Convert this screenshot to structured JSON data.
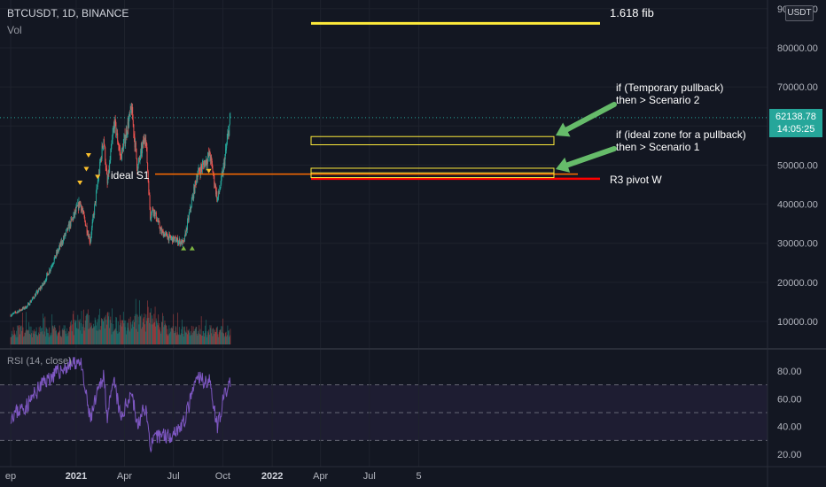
{
  "header": {
    "symbol_line": "BTCUSDT, 1D, BINANCE",
    "volume_label": "Vol",
    "rsi_label": "RSI (14, close)",
    "currency": "USDT"
  },
  "price_tag": {
    "price": "62138.78",
    "countdown": "14:05:25"
  },
  "annotations": {
    "fib": "1.618 fib",
    "scenario2_l1": "if (Temporary pullback)",
    "scenario2_l2": "then > Scenario 2",
    "scenario1_l1": "if (ideal zone for a pullback)",
    "scenario1_l2": "then > Scenario 1",
    "ideal_s1": "ideal S1",
    "r3": "R3 pivot W"
  },
  "colors": {
    "bg": "#131722",
    "up": "#26a69a",
    "down": "#ef5350",
    "rsi": "#7e57c2",
    "fib": "#ffeb3b",
    "s1": "#ff6d00",
    "r3": "#ff0000",
    "arrow": "#66bb6a"
  },
  "chart_data": [
    {
      "type": "candlestick",
      "x_ticks": [
        "ep",
        "2021",
        "Apr",
        "Jul",
        "Oct",
        "2022",
        "Apr",
        "Jul",
        "5"
      ],
      "y_ticks": [
        "90000.00",
        "80000.00",
        "70000.00",
        "60000.00",
        "50000.00",
        "40000.00",
        "30000.00",
        "20000.00",
        "10000.00"
      ],
      "ylim": [
        0,
        90000
      ],
      "close_path": [
        [
          "2020-09-01",
          11600
        ],
        [
          "2020-10-01",
          13800
        ],
        [
          "2020-11-01",
          19600
        ],
        [
          "2020-12-01",
          29000
        ],
        [
          "2021-01-08",
          40500
        ],
        [
          "2021-01-27",
          30500
        ],
        [
          "2021-02-21",
          57000
        ],
        [
          "2021-02-28",
          45000
        ],
        [
          "2021-03-13",
          61000
        ],
        [
          "2021-03-25",
          52000
        ],
        [
          "2021-04-14",
          64500
        ],
        [
          "2021-04-25",
          49000
        ],
        [
          "2021-05-10",
          58000
        ],
        [
          "2021-05-19",
          37000
        ],
        [
          "2021-05-24",
          39000
        ],
        [
          "2021-06-08",
          33000
        ],
        [
          "2021-06-22",
          31500
        ],
        [
          "2021-07-20",
          30000
        ],
        [
          "2021-08-14",
          47500
        ],
        [
          "2021-09-07",
          52700
        ],
        [
          "2021-09-21",
          41000
        ],
        [
          "2021-10-01",
          48000
        ],
        [
          "2021-10-15",
          62100
        ]
      ],
      "volume_range": [
        0,
        90000
      ],
      "markers": [
        {
          "date": "2021-01-08",
          "type": "down"
        },
        {
          "date": "2021-01-20",
          "type": "down"
        },
        {
          "date": "2021-01-24",
          "type": "down"
        },
        {
          "date": "2021-02-10",
          "type": "down"
        },
        {
          "date": "2021-07-20",
          "type": "up"
        },
        {
          "date": "2021-08-05",
          "type": "up"
        },
        {
          "date": "2021-09-05",
          "type": "down"
        }
      ],
      "levels": [
        {
          "name": "1.618 fib",
          "value": 86500
        },
        {
          "name": "ideal S1",
          "value": 47700
        },
        {
          "name": "R3 pivot W",
          "value": 46500
        }
      ],
      "zones": [
        {
          "from": 55200,
          "to": 57300
        },
        {
          "from": 46800,
          "to": 49200
        }
      ]
    },
    {
      "type": "line",
      "title": "RSI (14, close)",
      "y_ticks": [
        "80.00",
        "60.00",
        "40.00",
        "20.00"
      ],
      "ylim": [
        20,
        85
      ],
      "bands": [
        70,
        50,
        30
      ],
      "path": [
        [
          "2020-09-01",
          48
        ],
        [
          "2020-10-01",
          55
        ],
        [
          "2020-11-01",
          72
        ],
        [
          "2020-12-01",
          80
        ],
        [
          "2021-01-08",
          88
        ],
        [
          "2021-01-27",
          45
        ],
        [
          "2021-02-21",
          78
        ],
        [
          "2021-02-28",
          48
        ],
        [
          "2021-03-13",
          72
        ],
        [
          "2021-03-25",
          45
        ],
        [
          "2021-04-14",
          66
        ],
        [
          "2021-04-25",
          40
        ],
        [
          "2021-05-10",
          55
        ],
        [
          "2021-05-19",
          26
        ],
        [
          "2021-06-08",
          35
        ],
        [
          "2021-06-22",
          33
        ],
        [
          "2021-07-20",
          42
        ],
        [
          "2021-08-14",
          75
        ],
        [
          "2021-09-07",
          72
        ],
        [
          "2021-09-21",
          40
        ],
        [
          "2021-10-01",
          58
        ],
        [
          "2021-10-15",
          73
        ]
      ]
    }
  ]
}
